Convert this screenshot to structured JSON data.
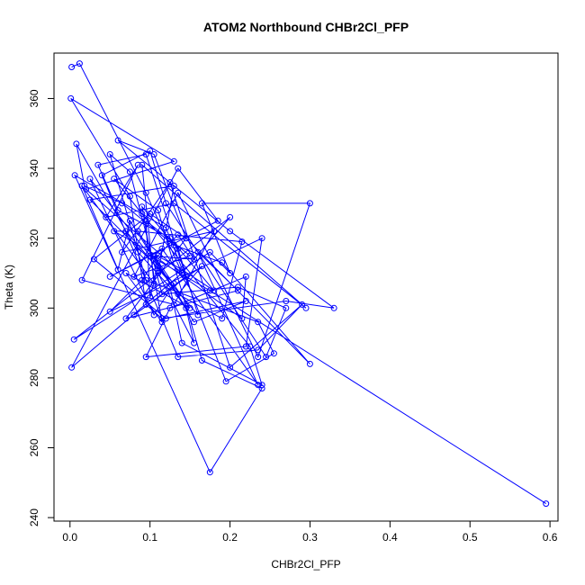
{
  "chart_data": {
    "type": "scatter",
    "title": "ATOM2 Northbound CHBr2Cl_PFP",
    "xlabel": "CHBr2Cl_PFP",
    "ylabel": "Theta (K)",
    "xlim": [
      -0.02,
      0.61
    ],
    "ylim": [
      239,
      373
    ],
    "x_ticks": [
      0.0,
      0.1,
      0.2,
      0.3,
      0.4,
      0.5,
      0.6
    ],
    "x_tick_labels": [
      "0.0",
      "0.1",
      "0.2",
      "0.3",
      "0.4",
      "0.5",
      "0.6"
    ],
    "y_ticks": [
      240,
      260,
      280,
      300,
      320,
      340,
      360
    ],
    "y_tick_labels": [
      "240",
      "260",
      "280",
      "300",
      "320",
      "340",
      "360"
    ],
    "grid": false,
    "series": [
      {
        "color": "#0000ff",
        "marker": "open-circle",
        "connected": true,
        "x": [
          0.002,
          0.012,
          0.095,
          0.14,
          0.02,
          0.13,
          0.001,
          0.075,
          0.095,
          0.115,
          0.27,
          0.33,
          0.2,
          0.06,
          0.105,
          0.145,
          0.3,
          0.19,
          0.13,
          0.065,
          0.018,
          0.008,
          0.085,
          0.125,
          0.14,
          0.24,
          0.225,
          0.09,
          0.055,
          0.11,
          0.165,
          0.24,
          0.175,
          0.006,
          0.12,
          0.195,
          0.255,
          0.235,
          0.095,
          0.05,
          0.075,
          0.115,
          0.21,
          0.27,
          0.245,
          0.12,
          0.1,
          0.04,
          0.135,
          0.235,
          0.29,
          0.2,
          0.125,
          0.065,
          0.18,
          0.13,
          0.015,
          0.085,
          0.045,
          0.13,
          0.295,
          0.09,
          0.105,
          0.015,
          0.06,
          0.075,
          0.155,
          0.22,
          0.12,
          0.03,
          0.1,
          0.145,
          0.07,
          0.21,
          0.16,
          0.235,
          0.115,
          0.05,
          0.185,
          0.135,
          0.002,
          0.14,
          0.2,
          0.005,
          0.175,
          0.2,
          0.165,
          0.3,
          0.235,
          0.135,
          0.08,
          0.15,
          0.095,
          0.1,
          0.11,
          0.025,
          0.105,
          0.13,
          0.025,
          0.13,
          0.11,
          0.155,
          0.145,
          0.085,
          0.215,
          0.19,
          0.135,
          0.165,
          0.08,
          0.145,
          0.095,
          0.035,
          0.06,
          0.125,
          0.18,
          0.14,
          0.055,
          0.07,
          0.16,
          0.135,
          0.09,
          0.115,
          0.07,
          0.15,
          0.105,
          0.215,
          0.22,
          0.125,
          0.095,
          0.22,
          0.24,
          0.05,
          0.09,
          0.11,
          0.135,
          0.155,
          0.1,
          0.175,
          0.595
        ],
        "y": [
          369,
          370,
          333,
          310,
          334,
          342,
          360,
          332,
          301,
          297,
          302,
          300,
          322,
          348,
          344,
          320,
          284,
          313,
          318,
          330,
          335,
          347,
          316,
          306,
          290,
          278,
          289,
          327,
          337,
          328,
          285,
          277,
          253,
          338,
          323,
          279,
          287,
          296,
          308,
          344,
          339,
          304,
          306,
          300,
          286,
          330,
          345,
          338,
          286,
          288,
          301,
          283,
          336,
          316,
          322,
          301,
          308,
          341,
          326,
          330,
          300,
          341,
          307,
          335,
          311,
          325,
          296,
          302,
          297,
          314,
          327,
          320,
          297,
          305,
          316,
          278,
          317,
          309,
          325,
          340,
          283,
          310,
          326,
          291,
          316,
          310,
          330,
          330,
          286,
          333,
          309,
          315,
          325,
          303,
          312,
          337,
          298,
          307,
          331,
          335,
          310,
          290,
          300,
          322,
          319,
          297,
          304,
          312,
          298,
          309,
          344,
          341,
          328,
          320,
          305,
          311,
          322,
          322,
          298,
          317,
          329,
          296,
          310,
          300,
          315,
          297,
          309,
          300,
          286,
          289,
          320,
          299,
          308,
          315,
          321,
          314,
          315,
          305,
          244
        ]
      }
    ]
  }
}
